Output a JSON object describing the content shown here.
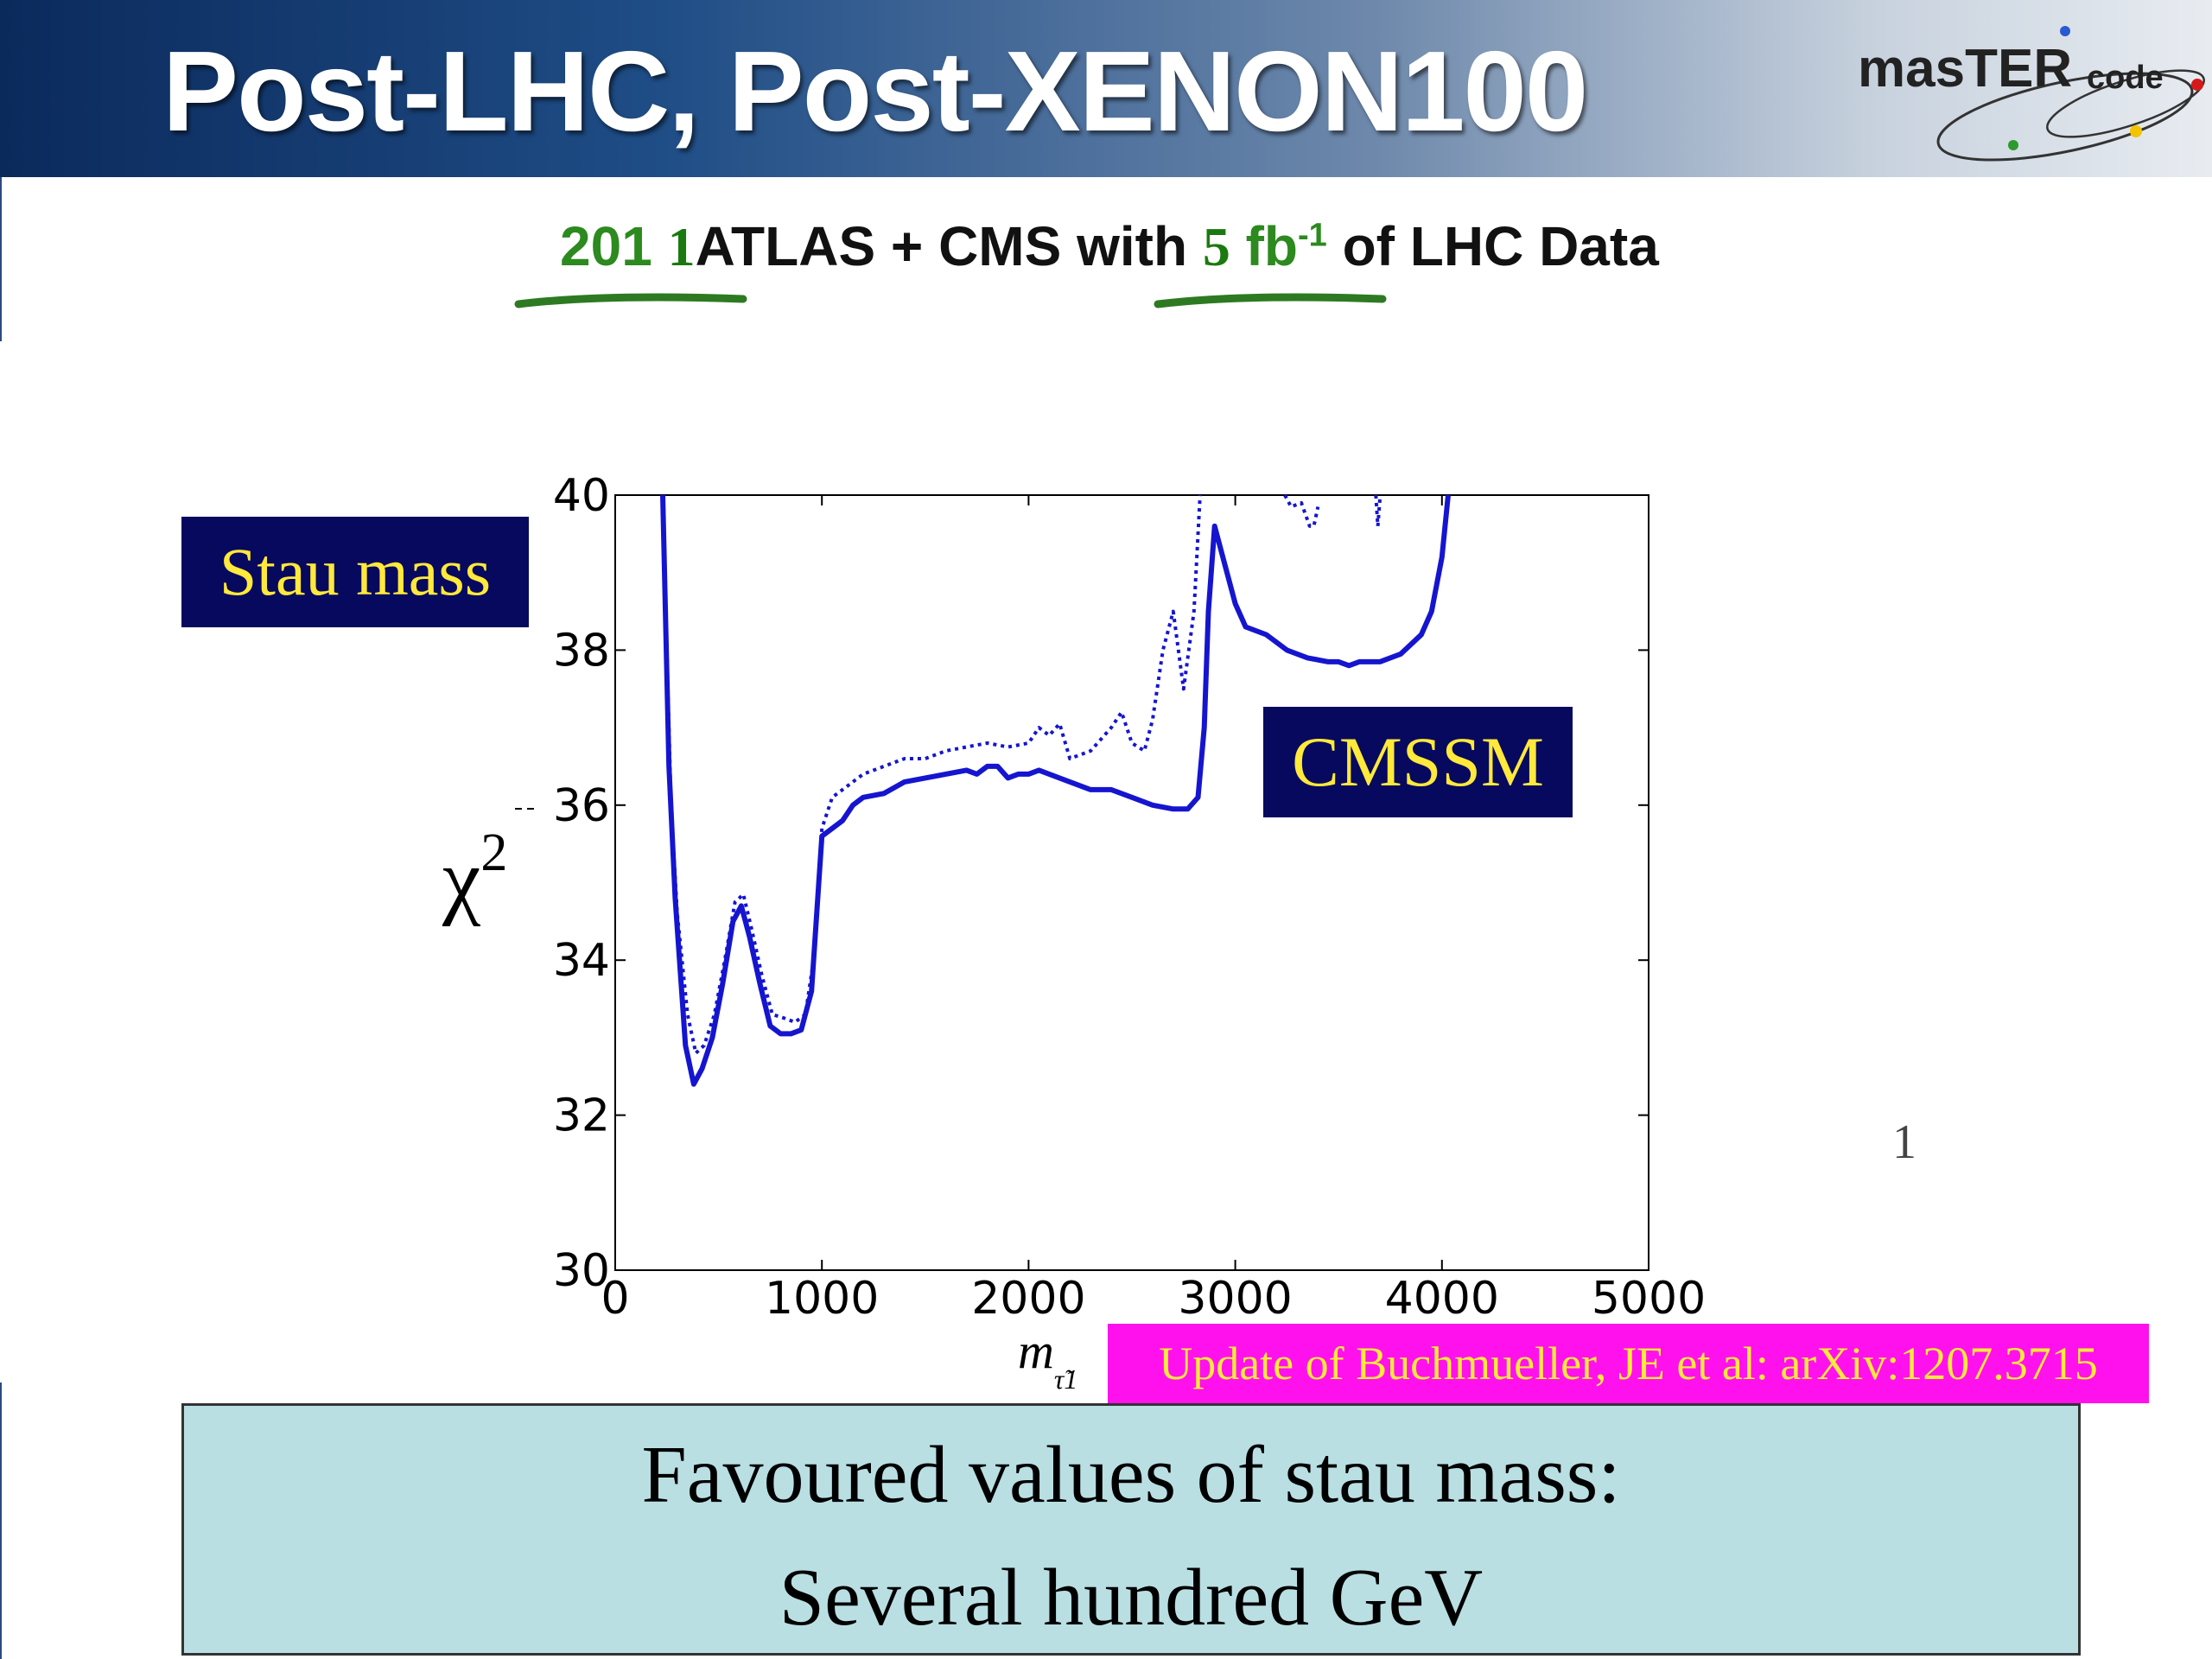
{
  "header": {
    "title": "Post-LHC, Post-XENON100",
    "logo_text_main": "masTER",
    "logo_text_sub": "code"
  },
  "subtitle": {
    "part1": "201",
    "part2": "1",
    "part3": "ATLAS + CMS with",
    "part4": "5",
    "part5": "fb",
    "part6": "-1",
    "part7": "of LHC Data"
  },
  "labels": {
    "stau_mass": "Stau mass",
    "cmssm": "CMSSM",
    "stray_one": "1"
  },
  "citation": "Update of Buchmueller, JE et al: arXiv:1207.3715",
  "bottom_box": {
    "line1": "Favoured values of stau mass:",
    "line2": "Several hundred GeV"
  },
  "colors": {
    "header_dark": "#0b2a5c",
    "navy_box": "#07095f",
    "label_yellow": "#ffe93a",
    "citation_bg": "#ff11ee",
    "bottom_box_bg": "#b9dfe3",
    "line_blue": "#1515d0"
  },
  "chart_data": {
    "type": "line",
    "ylabel": "χ",
    "ylabel_sup": "2",
    "xlabel": "m",
    "xlabel_sub": "τ̃1",
    "xlim": [
      0,
      5000
    ],
    "ylim": [
      30,
      40
    ],
    "xticks": [
      0,
      1000,
      2000,
      3000,
      4000,
      5000
    ],
    "yticks": [
      30,
      32,
      34,
      36,
      38,
      40
    ],
    "grid": false,
    "series": [
      {
        "style": "solid",
        "points": [
          [
            230,
            40
          ],
          [
            260,
            36.5
          ],
          [
            290,
            34.8
          ],
          [
            340,
            32.9
          ],
          [
            380,
            32.4
          ],
          [
            420,
            32.6
          ],
          [
            470,
            33.0
          ],
          [
            520,
            33.7
          ],
          [
            570,
            34.5
          ],
          [
            610,
            34.7
          ],
          [
            650,
            34.3
          ],
          [
            700,
            33.7
          ],
          [
            750,
            33.15
          ],
          [
            800,
            33.05
          ],
          [
            850,
            33.05
          ],
          [
            900,
            33.1
          ],
          [
            950,
            33.6
          ],
          [
            1000,
            35.6
          ],
          [
            1050,
            35.7
          ],
          [
            1100,
            35.8
          ],
          [
            1150,
            36.0
          ],
          [
            1200,
            36.1
          ],
          [
            1300,
            36.15
          ],
          [
            1400,
            36.3
          ],
          [
            1500,
            36.35
          ],
          [
            1600,
            36.4
          ],
          [
            1700,
            36.45
          ],
          [
            1750,
            36.4
          ],
          [
            1800,
            36.5
          ],
          [
            1850,
            36.5
          ],
          [
            1900,
            36.35
          ],
          [
            1950,
            36.4
          ],
          [
            2000,
            36.4
          ],
          [
            2050,
            36.45
          ],
          [
            2100,
            36.4
          ],
          [
            2200,
            36.3
          ],
          [
            2300,
            36.2
          ],
          [
            2400,
            36.2
          ],
          [
            2500,
            36.1
          ],
          [
            2600,
            36.0
          ],
          [
            2700,
            35.95
          ],
          [
            2770,
            35.95
          ],
          [
            2820,
            36.1
          ],
          [
            2850,
            37.0
          ],
          [
            2870,
            38.5
          ],
          [
            2900,
            39.6
          ],
          [
            2950,
            39.1
          ],
          [
            3000,
            38.6
          ],
          [
            3050,
            38.3
          ],
          [
            3150,
            38.2
          ],
          [
            3250,
            38.0
          ],
          [
            3350,
            37.9
          ],
          [
            3450,
            37.85
          ],
          [
            3500,
            37.85
          ],
          [
            3550,
            37.8
          ],
          [
            3600,
            37.85
          ],
          [
            3700,
            37.85
          ],
          [
            3800,
            37.95
          ],
          [
            3900,
            38.2
          ],
          [
            3950,
            38.5
          ],
          [
            4000,
            39.2
          ],
          [
            4030,
            40
          ]
        ]
      },
      {
        "style": "dotted",
        "points": [
          [
            230,
            40
          ],
          [
            270,
            36.0
          ],
          [
            300,
            34.6
          ],
          [
            350,
            33.3
          ],
          [
            390,
            32.8
          ],
          [
            430,
            32.9
          ],
          [
            480,
            33.3
          ],
          [
            530,
            34.0
          ],
          [
            580,
            34.75
          ],
          [
            620,
            34.85
          ],
          [
            660,
            34.4
          ],
          [
            710,
            33.8
          ],
          [
            760,
            33.3
          ],
          [
            820,
            33.25
          ],
          [
            870,
            33.2
          ],
          [
            920,
            33.3
          ],
          [
            960,
            34.0
          ],
          [
            1000,
            35.7
          ],
          [
            1050,
            36.1
          ],
          [
            1100,
            36.2
          ],
          [
            1200,
            36.4
          ],
          [
            1300,
            36.5
          ],
          [
            1400,
            36.6
          ],
          [
            1500,
            36.6
          ],
          [
            1600,
            36.7
          ],
          [
            1700,
            36.75
          ],
          [
            1800,
            36.8
          ],
          [
            1900,
            36.75
          ],
          [
            2000,
            36.8
          ],
          [
            2050,
            37.0
          ],
          [
            2100,
            36.9
          ],
          [
            2150,
            37.05
          ],
          [
            2200,
            36.6
          ],
          [
            2300,
            36.7
          ],
          [
            2400,
            37.0
          ],
          [
            2450,
            37.2
          ],
          [
            2500,
            36.8
          ],
          [
            2560,
            36.7
          ],
          [
            2600,
            37.1
          ],
          [
            2650,
            38.0
          ],
          [
            2700,
            38.5
          ],
          [
            2750,
            37.5
          ],
          [
            2800,
            38.5
          ],
          [
            2830,
            40
          ]
        ]
      },
      {
        "style": "dotted",
        "points": [
          [
            3240,
            40
          ],
          [
            3270,
            39.85
          ],
          [
            3320,
            39.9
          ],
          [
            3360,
            39.6
          ],
          [
            3380,
            39.6
          ],
          [
            3400,
            39.85
          ]
        ]
      },
      {
        "style": "dotted",
        "points": [
          [
            3680,
            40
          ],
          [
            3690,
            39.6
          ],
          [
            3700,
            39.95
          ]
        ]
      }
    ]
  }
}
